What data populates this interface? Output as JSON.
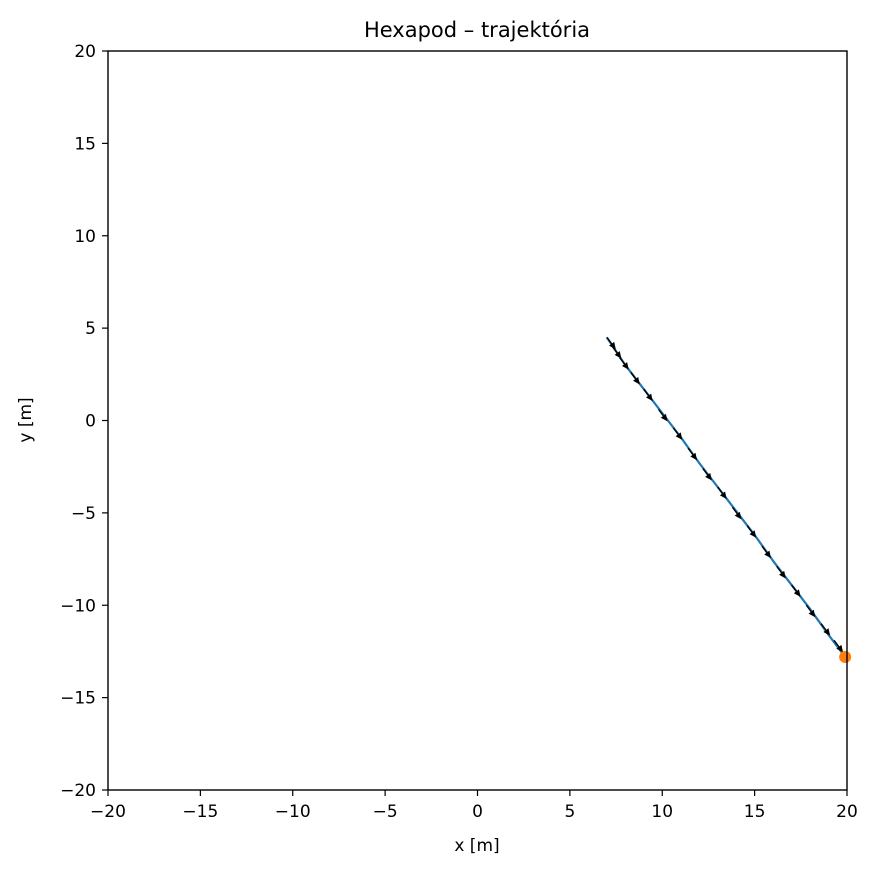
{
  "chart_data": {
    "type": "line",
    "title": "Hexapod – trajektória",
    "xlabel": "x [m]",
    "ylabel": "y [m]",
    "xlim": [
      -20,
      20
    ],
    "ylim": [
      -20,
      20
    ],
    "xticks": [
      -20,
      -15,
      -10,
      -5,
      0,
      5,
      10,
      15,
      20
    ],
    "yticks": [
      -20,
      -15,
      -10,
      -5,
      0,
      5,
      10,
      15,
      20
    ],
    "xtick_labels": [
      "−20",
      "−15",
      "−10",
      "−5",
      "0",
      "5",
      "10",
      "15",
      "20"
    ],
    "ytick_labels": [
      "−20",
      "−15",
      "−10",
      "−5",
      "0",
      "5",
      "10",
      "15",
      "20"
    ],
    "grid": false,
    "colors": {
      "trajectory": "#1f77b4",
      "end_marker": "#ff7f0e",
      "arrows": "#000000"
    },
    "series": [
      {
        "kind": "trajectory",
        "x": [
          7.0,
          8.0,
          9.0,
          10.0,
          11.0,
          12.0,
          13.0,
          14.0,
          15.0,
          16.0,
          17.0,
          18.0,
          19.0,
          19.9
        ],
        "y": [
          4.5,
          3.0,
          1.7,
          0.4,
          -0.9,
          -2.3,
          -3.6,
          -4.9,
          -6.2,
          -7.6,
          -8.9,
          -10.2,
          -11.6,
          -12.8
        ]
      },
      {
        "kind": "end_point",
        "x": [
          19.9
        ],
        "y": [
          -12.8
        ]
      }
    ],
    "arrows": {
      "x": [
        7.0,
        7.3,
        7.7,
        8.3,
        9.0,
        9.8,
        10.6,
        11.4,
        12.2,
        13.0,
        13.8,
        14.6,
        15.4,
        16.2,
        17.0,
        17.8,
        18.6,
        19.3
      ],
      "y": [
        4.5,
        4.0,
        3.4,
        2.6,
        1.7,
        0.6,
        -0.4,
        -1.5,
        -2.6,
        -3.6,
        -4.7,
        -5.7,
        -6.8,
        -7.9,
        -8.9,
        -10.0,
        -11.0,
        -11.9
      ],
      "dx": [
        0.45,
        0.45,
        0.45,
        0.45,
        0.45,
        0.45,
        0.45,
        0.45,
        0.45,
        0.45,
        0.45,
        0.45,
        0.45,
        0.45,
        0.45,
        0.45,
        0.45,
        0.45
      ],
      "dy": [
        -0.6,
        -0.6,
        -0.6,
        -0.6,
        -0.6,
        -0.6,
        -0.6,
        -0.6,
        -0.6,
        -0.6,
        -0.6,
        -0.6,
        -0.6,
        -0.6,
        -0.6,
        -0.6,
        -0.6,
        -0.6
      ]
    }
  }
}
